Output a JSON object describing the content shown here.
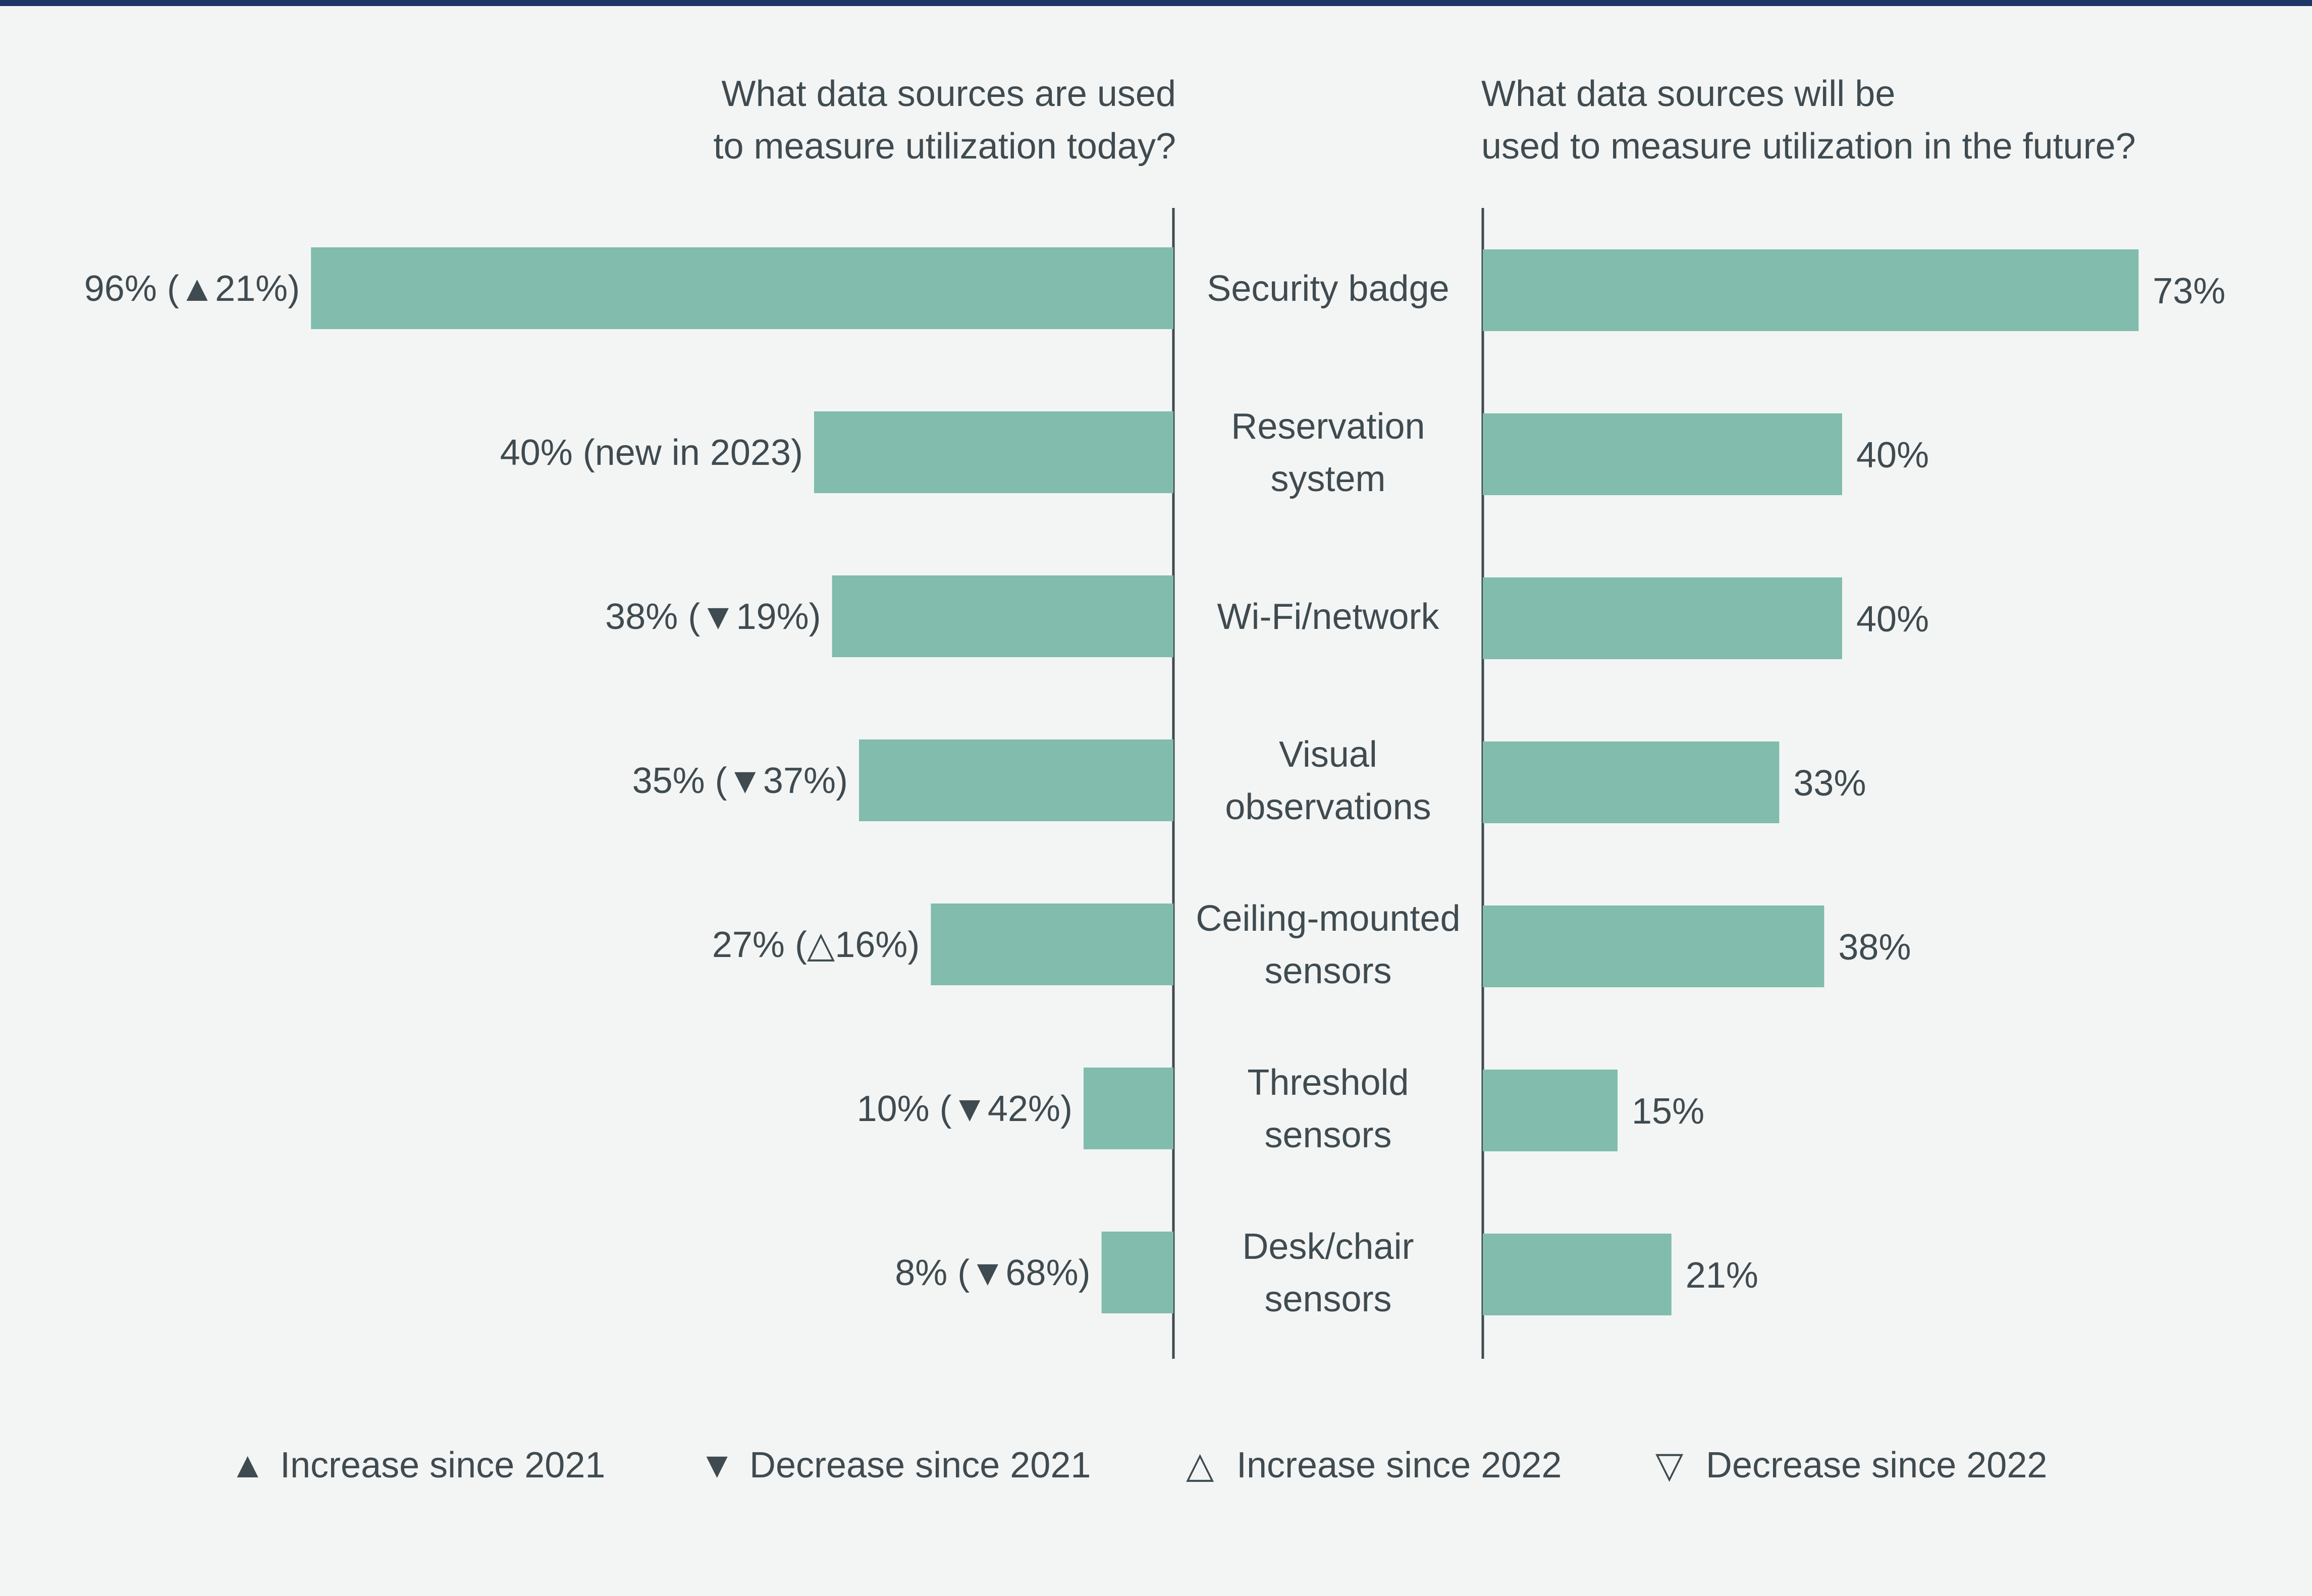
{
  "colors": {
    "bar": "#81bcad",
    "text": "#3f4b50",
    "axis": "#3f4b50",
    "top_border": "#1f3566",
    "background": "#f3f5f4"
  },
  "chart_data": {
    "type": "bar",
    "orientation": "horizontal-butterfly",
    "title_left": "What data sources are used to measure utilization today?",
    "title_right": "What data sources will be used to measure utilization in the future?",
    "categories": [
      "Security badge",
      "Reservation system",
      "Wi-Fi/network",
      "Visual observations",
      "Ceiling-mounted sensors",
      "Threshold sensors",
      "Desk/chair sensors"
    ],
    "series": [
      {
        "name": "today",
        "values": [
          96,
          40,
          38,
          35,
          27,
          10,
          8
        ],
        "labels": [
          "96% (▲21%)",
          "40% (new in 2023)",
          "38% (▼19%)",
          "35% (▼37%)",
          "27% (△16%)",
          "10% (▼42%)",
          "8% (▼68%)"
        ]
      },
      {
        "name": "future",
        "values": [
          73,
          40,
          40,
          33,
          38,
          15,
          21
        ],
        "labels": [
          "73%",
          "40%",
          "40%",
          "33%",
          "38%",
          "15%",
          "21%"
        ]
      }
    ],
    "xlim": [
      0,
      100
    ],
    "grid": false,
    "legend": {
      "position": "bottom",
      "items": [
        {
          "symbol": "▲",
          "label": "Increase since 2021"
        },
        {
          "symbol": "▼",
          "label": "Decrease since 2021"
        },
        {
          "symbol": "△",
          "label": "Increase since 2022"
        },
        {
          "symbol": "▽",
          "label": "Decrease since 2022"
        }
      ]
    }
  }
}
